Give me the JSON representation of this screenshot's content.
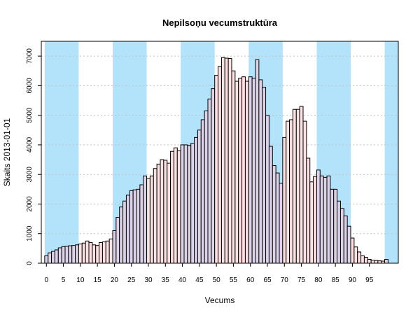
{
  "chart_data": {
    "type": "bar",
    "title": "Nepilsoņu vecumstruktūra",
    "xlabel": "Vecums",
    "ylabel": "Skaits 2013-01-01",
    "xlim": [
      -1.5,
      103.5
    ],
    "ylim": [
      0,
      7500
    ],
    "x_ticks": [
      0,
      5,
      10,
      15,
      20,
      25,
      30,
      35,
      40,
      45,
      50,
      55,
      60,
      65,
      70,
      75,
      80,
      85,
      90,
      95
    ],
    "y_ticks": [
      0,
      1000,
      2000,
      3000,
      4000,
      5000,
      6000,
      7000
    ],
    "grid": "horizontal-dotted",
    "band_color": "#b3e3fb",
    "band_ranges": [
      [
        -0.5,
        9.5
      ],
      [
        19.5,
        29.5
      ],
      [
        39.5,
        49.5
      ],
      [
        59.5,
        69.5
      ],
      [
        79.5,
        89.5
      ],
      [
        99.5,
        103.5
      ]
    ],
    "bar_colors": {
      "even_decade": "#dcd3e8",
      "odd_decade": "#fde1e3"
    },
    "ages": [
      0,
      1,
      2,
      3,
      4,
      5,
      6,
      7,
      8,
      9,
      10,
      11,
      12,
      13,
      14,
      15,
      16,
      17,
      18,
      19,
      20,
      21,
      22,
      23,
      24,
      25,
      26,
      27,
      28,
      29,
      30,
      31,
      32,
      33,
      34,
      35,
      36,
      37,
      38,
      39,
      40,
      41,
      42,
      43,
      44,
      45,
      46,
      47,
      48,
      49,
      50,
      51,
      52,
      53,
      54,
      55,
      56,
      57,
      58,
      59,
      60,
      61,
      62,
      63,
      64,
      65,
      66,
      67,
      68,
      69,
      70,
      71,
      72,
      73,
      74,
      75,
      76,
      77,
      78,
      79,
      80,
      81,
      82,
      83,
      84,
      85,
      86,
      87,
      88,
      89,
      90,
      91,
      92,
      93,
      94,
      95,
      96,
      97,
      98,
      99,
      100
    ],
    "values": [
      250,
      350,
      400,
      450,
      520,
      560,
      570,
      590,
      600,
      620,
      650,
      680,
      750,
      700,
      620,
      600,
      700,
      720,
      750,
      820,
      1100,
      1550,
      1900,
      2100,
      2300,
      2450,
      2480,
      2500,
      2650,
      2950,
      2870,
      2950,
      3200,
      3350,
      3500,
      3480,
      3380,
      3780,
      3900,
      3800,
      4000,
      4000,
      3980,
      4050,
      4250,
      4500,
      4850,
      5150,
      5550,
      5900,
      6350,
      6650,
      6950,
      6930,
      6920,
      6500,
      6150,
      6250,
      6300,
      6150,
      6300,
      6250,
      6880,
      6200,
      5950,
      5000,
      3950,
      3300,
      3050,
      2700,
      4250,
      4800,
      4850,
      5200,
      5200,
      5300,
      4800,
      3550,
      2750,
      2930,
      3150,
      2950,
      2900,
      2950,
      2500,
      2500,
      2100,
      1850,
      1600,
      1250,
      850,
      550,
      380,
      250,
      200,
      130,
      100,
      90,
      80,
      70,
      130
    ]
  }
}
